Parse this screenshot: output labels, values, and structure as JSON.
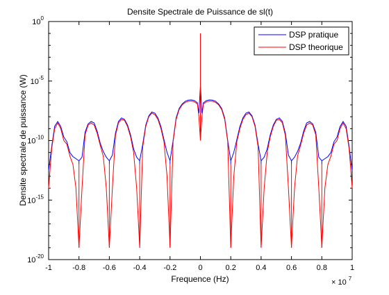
{
  "figure": {
    "background": "#ffffff"
  },
  "chart_data": {
    "type": "line",
    "title": "Densite Spectrale de Puissance de sl(t)",
    "xlabel": "Frequence (Hz)",
    "ylabel": "Densite spectrale de puissance (W)",
    "x_multiplier_label": "× 10",
    "x_multiplier_exp": "7",
    "xlim": [
      -10000000,
      10000000
    ],
    "ylim": [
      1e-20,
      1
    ],
    "yscale": "log",
    "grid": false,
    "legend_position": "top-right",
    "xticks": [
      -10000000,
      -8000000,
      -6000000,
      -4000000,
      -2000000,
      0,
      2000000,
      4000000,
      6000000,
      8000000,
      10000000
    ],
    "xtick_labels": [
      "-1",
      "-0.8",
      "-0.6",
      "-0.4",
      "-0.2",
      "0",
      "0.2",
      "0.4",
      "0.6",
      "0.8",
      "1"
    ],
    "yticks": [
      1e-20,
      1e-15,
      1e-10,
      1e-05,
      1
    ],
    "ytick_labels": [
      {
        "base": "10",
        "exp": "-20"
      },
      {
        "base": "10",
        "exp": "-15"
      },
      {
        "base": "10",
        "exp": "-10"
      },
      {
        "base": "10",
        "exp": "-5"
      },
      {
        "base": "10",
        "exp": "0"
      }
    ],
    "nulls_x": [
      -8000000,
      -6000000,
      -4000000,
      -2000000,
      2000000,
      4000000,
      6000000,
      8000000
    ],
    "series": [
      {
        "name": "DSP pratique",
        "color": "#0000ff",
        "null_min": 2e-12,
        "points": [
          [
            -10000000,
            3e-13
          ],
          [
            -9800000,
            3e-11
          ],
          [
            -9600000,
            1.6e-09
          ],
          [
            -9400000,
            4e-09
          ],
          [
            -9200000,
            1.5e-09
          ],
          [
            -9000000,
            2e-10
          ],
          [
            -8800000,
            8e-11
          ],
          [
            -8600000,
            1e-11
          ],
          [
            -8400000,
            4.5e-12
          ],
          [
            -8200000,
            3e-12
          ],
          [
            -8000000,
            2e-12
          ],
          [
            -7800000,
            4e-12
          ],
          [
            -7600000,
            5e-10
          ],
          [
            -7400000,
            2.5e-09
          ],
          [
            -7200000,
            4e-09
          ],
          [
            -7000000,
            3e-09
          ],
          [
            -6800000,
            6e-10
          ],
          [
            -6600000,
            6e-11
          ],
          [
            -6400000,
            1.2e-11
          ],
          [
            -6200000,
            4e-12
          ],
          [
            -6000000,
            2e-12
          ],
          [
            -5800000,
            6e-12
          ],
          [
            -5600000,
            4e-10
          ],
          [
            -5400000,
            4e-09
          ],
          [
            -5200000,
            8e-09
          ],
          [
            -5000000,
            6e-09
          ],
          [
            -4800000,
            2e-09
          ],
          [
            -4600000,
            3e-10
          ],
          [
            -4400000,
            2e-11
          ],
          [
            -4200000,
            4e-12
          ],
          [
            -4000000,
            2e-12
          ],
          [
            -3800000,
            5e-11
          ],
          [
            -3600000,
            2e-09
          ],
          [
            -3400000,
            1.2e-08
          ],
          [
            -3200000,
            2.5e-08
          ],
          [
            -3000000,
            2e-08
          ],
          [
            -2800000,
            8e-09
          ],
          [
            -2600000,
            1.5e-09
          ],
          [
            -2400000,
            1.2e-10
          ],
          [
            -2200000,
            1e-11
          ],
          [
            -2000000,
            2e-12
          ],
          [
            -1800000,
            1e-10
          ],
          [
            -1600000,
            8e-09
          ],
          [
            -1400000,
            5e-08
          ],
          [
            -1200000,
            1.2e-07
          ],
          [
            -1000000,
            2e-07
          ],
          [
            -800000,
            2.5e-07
          ],
          [
            -600000,
            2.6e-07
          ],
          [
            -400000,
            2.3e-07
          ],
          [
            -200000,
            1.5e-07
          ],
          [
            -100000,
            2e-08
          ],
          [
            0,
            4e-06
          ],
          [
            100000,
            2e-08
          ],
          [
            200000,
            1.5e-07
          ],
          [
            400000,
            2.3e-07
          ],
          [
            600000,
            2.6e-07
          ],
          [
            800000,
            2.5e-07
          ],
          [
            1000000,
            2e-07
          ],
          [
            1200000,
            1.2e-07
          ],
          [
            1400000,
            5e-08
          ],
          [
            1600000,
            8e-09
          ],
          [
            1800000,
            1e-10
          ],
          [
            2000000,
            2e-12
          ],
          [
            2200000,
            1e-11
          ],
          [
            2400000,
            1.2e-10
          ],
          [
            2600000,
            1.5e-09
          ],
          [
            2800000,
            8e-09
          ],
          [
            3000000,
            2e-08
          ],
          [
            3200000,
            2.5e-08
          ],
          [
            3400000,
            1.2e-08
          ],
          [
            3600000,
            2e-09
          ],
          [
            3800000,
            5e-11
          ],
          [
            4000000,
            2e-12
          ],
          [
            4200000,
            4e-12
          ],
          [
            4400000,
            2e-11
          ],
          [
            4600000,
            3e-10
          ],
          [
            4800000,
            2e-09
          ],
          [
            5000000,
            6e-09
          ],
          [
            5200000,
            8e-09
          ],
          [
            5400000,
            4e-09
          ],
          [
            5600000,
            4e-10
          ],
          [
            5800000,
            6e-12
          ],
          [
            6000000,
            2e-12
          ],
          [
            6200000,
            4e-12
          ],
          [
            6400000,
            1.2e-11
          ],
          [
            6600000,
            6e-11
          ],
          [
            6800000,
            6e-10
          ],
          [
            7000000,
            3e-09
          ],
          [
            7200000,
            4e-09
          ],
          [
            7400000,
            2.5e-09
          ],
          [
            7600000,
            5e-10
          ],
          [
            7800000,
            4e-12
          ],
          [
            8000000,
            2e-12
          ],
          [
            8200000,
            3e-12
          ],
          [
            8400000,
            4.5e-12
          ],
          [
            8600000,
            1e-11
          ],
          [
            8800000,
            8e-11
          ],
          [
            9000000,
            2e-10
          ],
          [
            9200000,
            1.5e-09
          ],
          [
            9400000,
            4e-09
          ],
          [
            9600000,
            1.6e-09
          ],
          [
            9800000,
            3e-11
          ],
          [
            10000000,
            3e-13
          ]
        ]
      },
      {
        "name": "DSP theorique",
        "color": "#ff0000",
        "null_min": 1e-19,
        "points": [
          [
            -10000000,
            1e-14
          ],
          [
            -9800000,
            2e-11
          ],
          [
            -9600000,
            1e-09
          ],
          [
            -9400000,
            3e-09
          ],
          [
            -9200000,
            1e-09
          ],
          [
            -9000000,
            1e-10
          ],
          [
            -8800000,
            5e-11
          ],
          [
            -8600000,
            5e-12
          ],
          [
            -8400000,
            1e-12
          ],
          [
            -8200000,
            1e-14
          ],
          [
            -8000000,
            1e-19
          ],
          [
            -7800000,
            1e-14
          ],
          [
            -7600000,
            3e-10
          ],
          [
            -7400000,
            2e-09
          ],
          [
            -7200000,
            3e-09
          ],
          [
            -7000000,
            2e-09
          ],
          [
            -6800000,
            4e-10
          ],
          [
            -6600000,
            4e-11
          ],
          [
            -6400000,
            5e-12
          ],
          [
            -6200000,
            1e-14
          ],
          [
            -6000000,
            1e-19
          ],
          [
            -5800000,
            1e-14
          ],
          [
            -5600000,
            2.5e-10
          ],
          [
            -5400000,
            3e-09
          ],
          [
            -5200000,
            6e-09
          ],
          [
            -5000000,
            5e-09
          ],
          [
            -4800000,
            1.5e-09
          ],
          [
            -4600000,
            2e-10
          ],
          [
            -4400000,
            1e-11
          ],
          [
            -4200000,
            1e-14
          ],
          [
            -4000000,
            1e-19
          ],
          [
            -3800000,
            3e-11
          ],
          [
            -3600000,
            1.5e-09
          ],
          [
            -3400000,
            1e-08
          ],
          [
            -3200000,
            2e-08
          ],
          [
            -3000000,
            1.5e-08
          ],
          [
            -2800000,
            6e-09
          ],
          [
            -2600000,
            1e-09
          ],
          [
            -2400000,
            8e-11
          ],
          [
            -2200000,
            1e-13
          ],
          [
            -2000000,
            1e-19
          ],
          [
            -1800000,
            8e-11
          ],
          [
            -1600000,
            6e-09
          ],
          [
            -1400000,
            4e-08
          ],
          [
            -1200000,
            1e-07
          ],
          [
            -1000000,
            1.6e-07
          ],
          [
            -800000,
            2e-07
          ],
          [
            -600000,
            2.1e-07
          ],
          [
            -400000,
            1.8e-07
          ],
          [
            -200000,
            1.2e-07
          ],
          [
            -100000,
            1e-08
          ],
          [
            0,
            1e-10
          ],
          [
            100000,
            1e-08
          ],
          [
            200000,
            1.2e-07
          ],
          [
            400000,
            1.8e-07
          ],
          [
            600000,
            2.1e-07
          ],
          [
            800000,
            2e-07
          ],
          [
            1000000,
            1.6e-07
          ],
          [
            1200000,
            1e-07
          ],
          [
            1400000,
            4e-08
          ],
          [
            1600000,
            6e-09
          ],
          [
            1800000,
            8e-11
          ],
          [
            2000000,
            1e-19
          ],
          [
            2200000,
            1e-13
          ],
          [
            2400000,
            8e-11
          ],
          [
            2600000,
            1e-09
          ],
          [
            2800000,
            6e-09
          ],
          [
            3000000,
            1.5e-08
          ],
          [
            3200000,
            2e-08
          ],
          [
            3400000,
            1e-08
          ],
          [
            3600000,
            1.5e-09
          ],
          [
            3800000,
            3e-11
          ],
          [
            4000000,
            1e-19
          ],
          [
            4200000,
            1e-14
          ],
          [
            4400000,
            1e-11
          ],
          [
            4600000,
            2e-10
          ],
          [
            4800000,
            1.5e-09
          ],
          [
            5000000,
            5e-09
          ],
          [
            5200000,
            6e-09
          ],
          [
            5400000,
            3e-09
          ],
          [
            5600000,
            2.5e-10
          ],
          [
            5800000,
            1e-14
          ],
          [
            6000000,
            1e-19
          ],
          [
            6200000,
            1e-14
          ],
          [
            6400000,
            5e-12
          ],
          [
            6600000,
            4e-11
          ],
          [
            6800000,
            4e-10
          ],
          [
            7000000,
            2e-09
          ],
          [
            7200000,
            3e-09
          ],
          [
            7400000,
            2e-09
          ],
          [
            7600000,
            3e-10
          ],
          [
            7800000,
            1e-14
          ],
          [
            8000000,
            1e-19
          ],
          [
            8200000,
            1e-14
          ],
          [
            8400000,
            1e-12
          ],
          [
            8600000,
            5e-12
          ],
          [
            8800000,
            5e-11
          ],
          [
            9000000,
            1e-10
          ],
          [
            9200000,
            1e-09
          ],
          [
            9400000,
            3e-09
          ],
          [
            9600000,
            1e-09
          ],
          [
            9800000,
            2e-11
          ],
          [
            10000000,
            1e-14
          ]
        ],
        "spike": {
          "x": 0,
          "y": 0.1
        }
      }
    ]
  }
}
